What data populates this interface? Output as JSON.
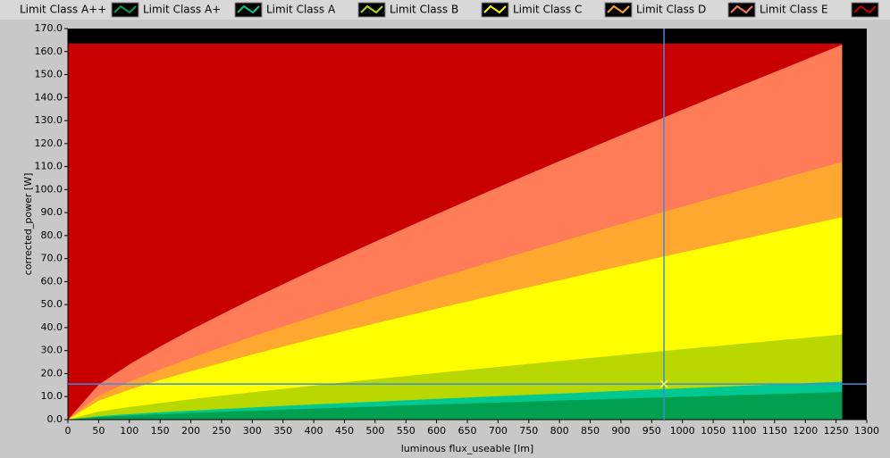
{
  "chart_data": {
    "type": "area",
    "x_label": "luminous flux_useable [lm]",
    "y_label": "corrected_power [W]",
    "x": [
      0,
      50,
      100,
      150,
      200,
      300,
      400,
      500,
      600,
      700,
      800,
      900,
      1000,
      1100,
      1200,
      1260
    ],
    "series": [
      {
        "name": "Limit Class A++",
        "color": "#00a050",
        "values": [
          0,
          1.1,
          1.8,
          2.3,
          2.9,
          3.9,
          4.8,
          5.7,
          6.6,
          7.4,
          8.3,
          9.1,
          9.9,
          10.7,
          11.5,
          12.0
        ]
      },
      {
        "name": "Limit Class A+",
        "color": "#00c890",
        "values": [
          0,
          1.5,
          2.4,
          3.2,
          3.9,
          5.3,
          6.6,
          7.8,
          9.0,
          10.2,
          11.3,
          12.5,
          13.6,
          14.7,
          15.8,
          16.5
        ]
      },
      {
        "name": "Limit Class A",
        "color": "#b8d800",
        "values": [
          0,
          3.5,
          5.5,
          7.2,
          8.9,
          11.9,
          14.8,
          17.6,
          20.3,
          22.9,
          25.5,
          28.1,
          30.6,
          33.1,
          35.5,
          37.0
        ]
      },
      {
        "name": "Limit Class B",
        "color": "#ffff00",
        "values": [
          0,
          8.2,
          13.0,
          17.2,
          21.0,
          28.3,
          35.2,
          41.8,
          48.2,
          54.5,
          60.6,
          66.7,
          72.7,
          78.6,
          84.5,
          88.0
        ]
      },
      {
        "name": "Limit Class C",
        "color": "#ffa830",
        "values": [
          0,
          10.4,
          16.5,
          21.8,
          26.8,
          36.1,
          44.8,
          53.2,
          61.4,
          69.4,
          77.2,
          85.0,
          92.6,
          100.1,
          107.6,
          112.0
        ]
      },
      {
        "name": "Limit Class D",
        "color": "#ff7c58",
        "values": [
          0,
          15.2,
          24.0,
          31.8,
          39.0,
          52.5,
          65.2,
          77.4,
          89.3,
          101.0,
          112.4,
          123.6,
          134.7,
          145.7,
          156.5,
          163.0
        ]
      },
      {
        "name": "Limit Class E",
        "color": "#c80000",
        "values": [
          163.5,
          163.5,
          163.5,
          163.5,
          163.5,
          163.5,
          163.5,
          163.5,
          163.5,
          163.5,
          163.5,
          163.5,
          163.5,
          163.5,
          163.5,
          163.5
        ]
      }
    ],
    "xlim": [
      0,
      1300
    ],
    "xticks": [
      0,
      50,
      100,
      150,
      200,
      250,
      300,
      350,
      400,
      450,
      500,
      550,
      600,
      650,
      700,
      750,
      800,
      850,
      900,
      950,
      1000,
      1050,
      1100,
      1150,
      1200,
      1250,
      1300
    ],
    "ylim": [
      0,
      170
    ],
    "yticks": [
      {
        "value": 0,
        "label": "0.0"
      },
      {
        "value": 10,
        "label": "10.0"
      },
      {
        "value": 20,
        "label": "20.0"
      },
      {
        "value": 30,
        "label": "30.0"
      },
      {
        "value": 40,
        "label": "40.0"
      },
      {
        "value": 50,
        "label": "50.0"
      },
      {
        "value": 60,
        "label": "60.0"
      },
      {
        "value": 70,
        "label": "70.0"
      },
      {
        "value": 80,
        "label": "80.0"
      },
      {
        "value": 90,
        "label": "90.0"
      },
      {
        "value": 100,
        "label": "100.0"
      },
      {
        "value": 110,
        "label": "110.0"
      },
      {
        "value": 120,
        "label": "120.0"
      },
      {
        "value": 130,
        "label": "130.0"
      },
      {
        "value": 140,
        "label": "140.0"
      },
      {
        "value": 150,
        "label": "150.0"
      },
      {
        "value": 160,
        "label": "160.0"
      },
      {
        "value": 170,
        "label": "170.0"
      }
    ],
    "background": "#000000",
    "cursor": {
      "x": 970,
      "y": 15.5,
      "color": "#3c8ce0"
    }
  }
}
